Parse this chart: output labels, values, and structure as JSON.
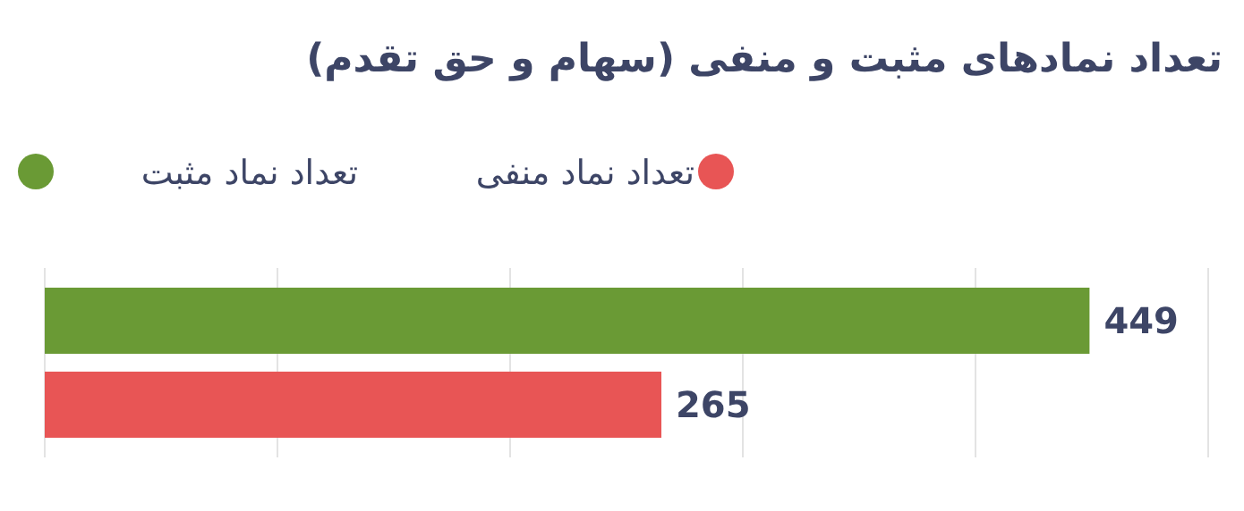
{
  "chart_data": {
    "type": "bar",
    "orientation": "horizontal",
    "title": "تعداد نمادهای مثبت و منفی (سهام و حق تقدم)",
    "categories": [
      null
    ],
    "series": [
      {
        "name": "تعداد نماد مثبت",
        "color": "#6a9a35",
        "values": [
          449
        ]
      },
      {
        "name": "تعداد نماد منفی",
        "color": "#e85555",
        "values": [
          265
        ]
      }
    ],
    "xlim": [
      0,
      500
    ],
    "xticks": [
      {
        "value": 0,
        "label": null
      },
      {
        "value": 100,
        "label": null
      },
      {
        "value": 200,
        "label": null
      },
      {
        "value": 300,
        "label": null
      },
      {
        "value": 400,
        "label": null
      },
      {
        "value": 500,
        "label": null
      }
    ],
    "grid": "x",
    "legend": "top",
    "data_labels": true
  }
}
